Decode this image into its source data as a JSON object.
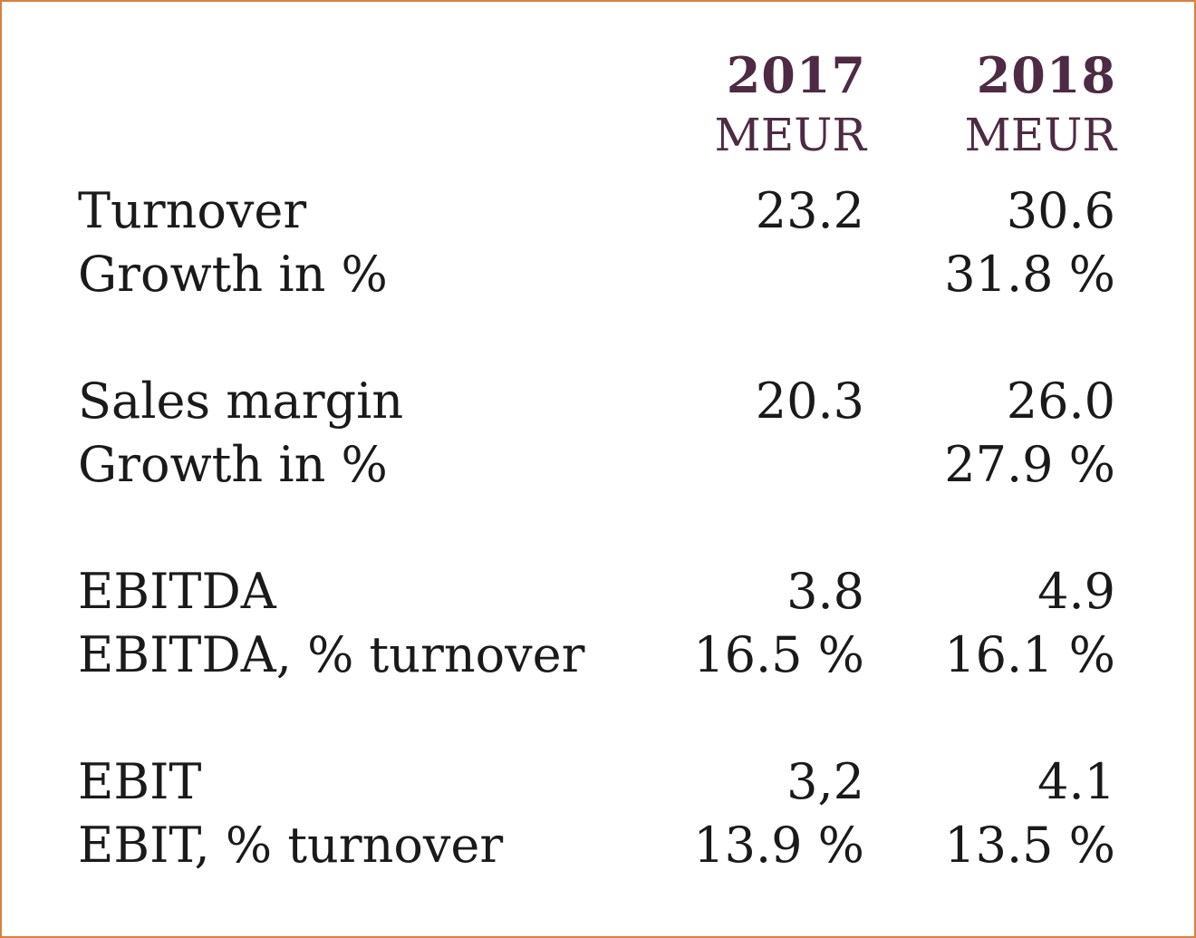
{
  "columns": [
    {
      "year": "2017",
      "unit": "MEUR"
    },
    {
      "year": "2018",
      "unit": "MEUR"
    }
  ],
  "rows": [
    {
      "label": "Turnover",
      "v2017": "23.2",
      "v2018": "30.6"
    },
    {
      "label": "Growth in %",
      "v2017": "",
      "v2018": "31.8 %"
    },
    {
      "label": "Sales margin",
      "v2017": "20.3",
      "v2018": "26.0"
    },
    {
      "label": "Growth in %",
      "v2017": "",
      "v2018": "27.9 %"
    },
    {
      "label": "EBITDA",
      "v2017": "3.8",
      "v2018": "4.9"
    },
    {
      "label": "EBITDA, % turnover",
      "v2017": "16.5 %",
      "v2018": "16.1 %"
    },
    {
      "label": "EBIT",
      "v2017": "3,2",
      "v2018": "4.1"
    },
    {
      "label": "EBIT, % turnover",
      "v2017": "13.9 %",
      "v2018": "13.5 %"
    }
  ],
  "colors": {
    "border": "#d9803f",
    "header": "#4e2a44",
    "text": "#1a1a1a"
  }
}
